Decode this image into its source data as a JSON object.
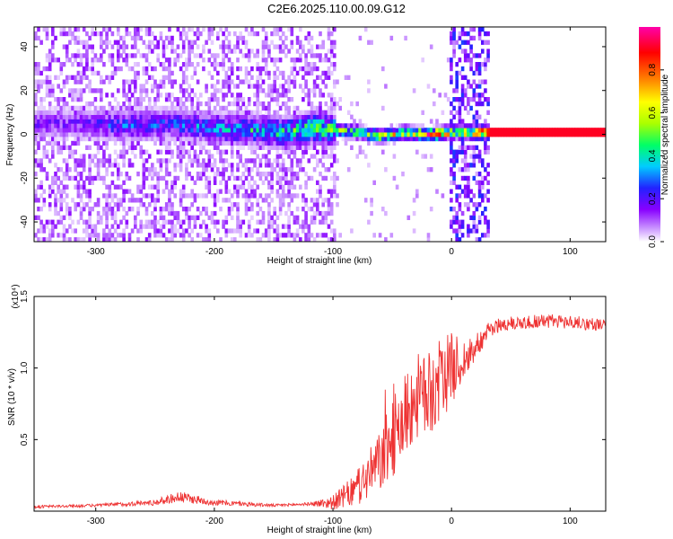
{
  "figure_title": "C2E6.2025.110.00.09.G12",
  "chart_data": [
    {
      "type": "heatmap",
      "xlabel": "Height of straight line (km)",
      "ylabel": "Frequency (Hz)",
      "xlim": [
        -352,
        130
      ],
      "ylim": [
        -49,
        49
      ],
      "x_ticks": [
        -300,
        -200,
        -100,
        0,
        100
      ],
      "y_ticks": [
        -40,
        -20,
        0,
        20,
        40
      ],
      "colorbar": {
        "label": "Normalized spectral amplitude",
        "range": [
          0,
          1
        ],
        "ticks": [
          0.0,
          0.2,
          0.4,
          0.6,
          0.8
        ],
        "colors": [
          "#ffffff",
          "#cc99ff",
          "#8800ff",
          "#2222ff",
          "#00ccff",
          "#00ff66",
          "#aaff00",
          "#ffff00",
          "#ff8800",
          "#ff0000",
          "#ff00aa"
        ]
      },
      "ridge": {
        "x": [
          -320,
          -280,
          -240,
          -200,
          -170,
          -140,
          -120,
          -100,
          -80,
          -60,
          -40,
          -20,
          -5,
          0,
          30,
          130
        ],
        "frequency": [
          4,
          3,
          4,
          2,
          1,
          0,
          2,
          1,
          0,
          -2,
          0,
          -1,
          0,
          0,
          0,
          0
        ],
        "amplitude": [
          0.2,
          0.3,
          0.3,
          0.35,
          0.4,
          0.45,
          0.5,
          0.55,
          0.55,
          0.6,
          0.7,
          0.8,
          0.85,
          0.6,
          0.95,
          0.95
        ]
      },
      "broadband_regions": [
        {
          "x_range": [
            -352,
            -100
          ],
          "amplitude": 0.15
        },
        {
          "x_range": [
            -2,
            30
          ],
          "amplitude": 0.25
        }
      ]
    },
    {
      "type": "line",
      "xlabel": "Height of straight line (km)",
      "ylabel": "SNR (10 * v/v)",
      "y_multiplier": "(x10⁴)",
      "xlim": [
        -352,
        130
      ],
      "ylim": [
        0,
        1.5
      ],
      "x_ticks": [
        -300,
        -200,
        -100,
        0,
        100
      ],
      "y_ticks": [
        0.5,
        1.0,
        1.5
      ],
      "color": "#ee3333",
      "series": [
        {
          "x": [
            -352,
            -300,
            -250,
            -230,
            -200,
            -150,
            -120,
            -100,
            -80,
            -60,
            -50,
            -40,
            -30,
            -20,
            -10,
            0,
            10,
            20,
            30,
            40,
            60,
            80,
            100,
            130
          ],
          "y": [
            0.03,
            0.04,
            0.06,
            0.1,
            0.06,
            0.04,
            0.05,
            0.06,
            0.15,
            0.35,
            0.5,
            0.65,
            0.8,
            0.8,
            0.9,
            1.0,
            1.05,
            1.15,
            1.25,
            1.3,
            1.32,
            1.33,
            1.32,
            1.3
          ]
        }
      ],
      "noise_amplitude": [
        0.01,
        0.01,
        0.02,
        0.04,
        0.02,
        0.01,
        0.01,
        0.05,
        0.12,
        0.22,
        0.28,
        0.3,
        0.3,
        0.3,
        0.3,
        0.25,
        0.15,
        0.1,
        0.06,
        0.05,
        0.05,
        0.05,
        0.05,
        0.04
      ]
    }
  ]
}
